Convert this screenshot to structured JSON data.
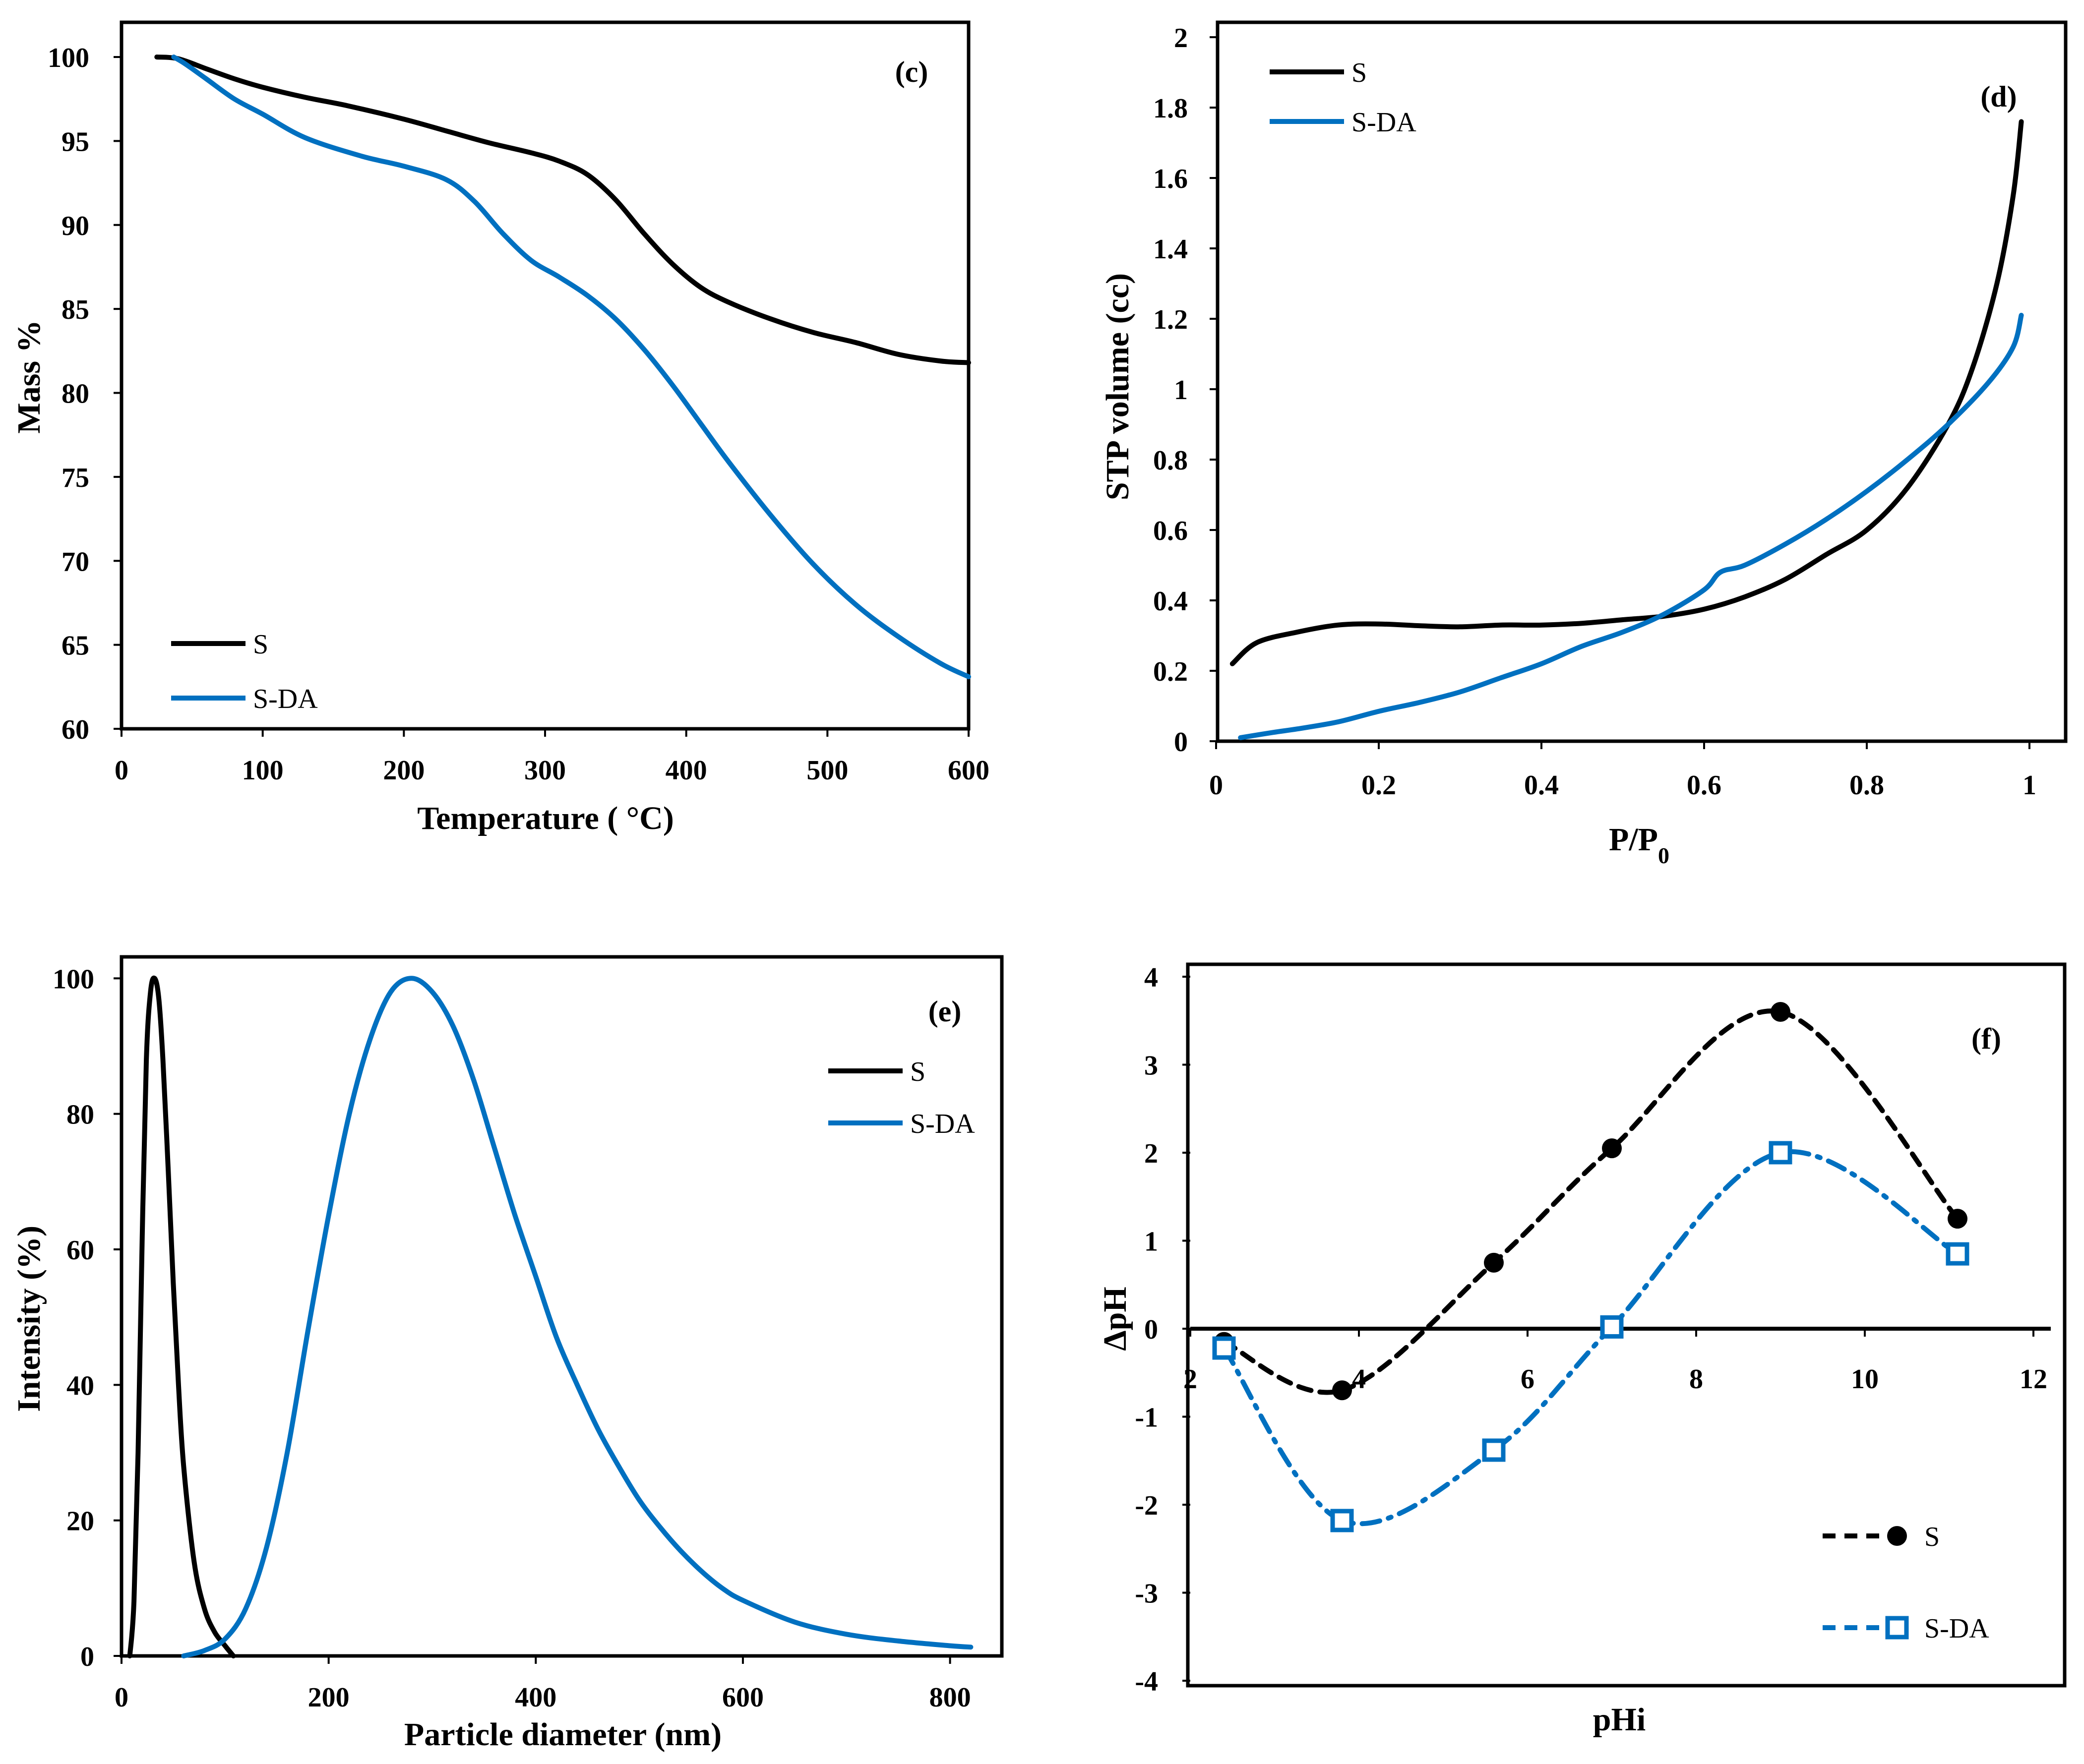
{
  "colors": {
    "S": "#000000",
    "S_DA": "#0070C0"
  },
  "chart_data": [
    {
      "id": "c",
      "type": "line",
      "panel_label": "(c)",
      "xlabel": "Temperature ( °C)",
      "ylabel": "Mass %",
      "xlim": [
        0,
        600
      ],
      "ylim": [
        60,
        100
      ],
      "xticks": [
        0,
        100,
        200,
        300,
        400,
        500,
        600
      ],
      "yticks": [
        60,
        65,
        70,
        75,
        80,
        85,
        90,
        95,
        100
      ],
      "legend": [
        "S",
        "S-DA"
      ],
      "legend_position": "bottom-left",
      "series": [
        {
          "name": "S",
          "x": [
            25,
            40,
            60,
            80,
            100,
            130,
            160,
            200,
            230,
            260,
            290,
            310,
            330,
            350,
            370,
            390,
            410,
            430,
            460,
            490,
            520,
            550,
            580,
            600
          ],
          "y": [
            100,
            99.9,
            99.3,
            98.7,
            98.2,
            97.6,
            97.1,
            96.3,
            95.6,
            94.9,
            94.3,
            93.8,
            93,
            91.5,
            89.5,
            87.7,
            86.3,
            85.4,
            84.4,
            83.6,
            83,
            82.3,
            81.9,
            81.8
          ]
        },
        {
          "name": "S-DA",
          "x": [
            37,
            45,
            60,
            80,
            100,
            130,
            170,
            200,
            230,
            250,
            270,
            290,
            310,
            330,
            350,
            370,
            390,
            410,
            430,
            460,
            490,
            520,
            550,
            580,
            600
          ],
          "y": [
            100,
            99.6,
            98.7,
            97.5,
            96.6,
            95.2,
            94.1,
            93.5,
            92.7,
            91.4,
            89.5,
            87.9,
            86.9,
            85.8,
            84.4,
            82.6,
            80.5,
            78.2,
            75.9,
            72.7,
            69.8,
            67.4,
            65.5,
            63.9,
            63.1
          ]
        }
      ]
    },
    {
      "id": "d",
      "type": "line",
      "panel_label": "(d)",
      "xlabel": "P/P",
      "xlabel_sub": "0",
      "ylabel": "STP volume (cc)",
      "xlim": [
        0,
        1
      ],
      "ylim": [
        0,
        2
      ],
      "xticks": [
        "0",
        "0.2",
        "0.4",
        "0.6",
        "0.8",
        "1"
      ],
      "yticks": [
        "0",
        "0.2",
        "0.4",
        "0.6",
        "0.8",
        "1",
        "1.2",
        "1.4",
        "1.6",
        "1.8",
        "2"
      ],
      "legend": [
        "S",
        "S-DA"
      ],
      "legend_position": "top-left",
      "series": [
        {
          "name": "S",
          "x": [
            0.02,
            0.05,
            0.1,
            0.15,
            0.2,
            0.25,
            0.3,
            0.35,
            0.4,
            0.45,
            0.5,
            0.55,
            0.6,
            0.65,
            0.7,
            0.75,
            0.8,
            0.85,
            0.9,
            0.93,
            0.96,
            0.98,
            0.99
          ],
          "y": [
            0.22,
            0.28,
            0.31,
            0.33,
            0.333,
            0.328,
            0.325,
            0.33,
            0.33,
            0.335,
            0.345,
            0.355,
            0.375,
            0.41,
            0.46,
            0.53,
            0.6,
            0.72,
            0.9,
            1.06,
            1.3,
            1.55,
            1.76
          ]
        },
        {
          "name": "S-DA",
          "x": [
            0.03,
            0.07,
            0.1,
            0.15,
            0.2,
            0.25,
            0.3,
            0.35,
            0.4,
            0.45,
            0.5,
            0.55,
            0.6,
            0.62,
            0.65,
            0.7,
            0.75,
            0.8,
            0.85,
            0.9,
            0.95,
            0.98,
            0.99
          ],
          "y": [
            0.01,
            0.025,
            0.035,
            0.055,
            0.085,
            0.11,
            0.14,
            0.18,
            0.22,
            0.27,
            0.31,
            0.36,
            0.43,
            0.48,
            0.5,
            0.56,
            0.63,
            0.71,
            0.8,
            0.9,
            1.02,
            1.12,
            1.21
          ]
        }
      ]
    },
    {
      "id": "e",
      "type": "line",
      "panel_label": "(e)",
      "xlabel": "Particle diameter (nm)",
      "ylabel": "Intensity (%)",
      "xlim": [
        0,
        850
      ],
      "ylim": [
        0,
        105
      ],
      "xticks": [
        0,
        200,
        400,
        600,
        800
      ],
      "yticks": [
        0,
        20,
        40,
        60,
        80,
        100
      ],
      "legend": [
        "S",
        "S-DA"
      ],
      "legend_position": "top-right",
      "series": [
        {
          "name": "S",
          "x": [
            8,
            12,
            16,
            20,
            24,
            28,
            32,
            36,
            40,
            45,
            50,
            55,
            60,
            70,
            80,
            90,
            100,
            108
          ],
          "y": [
            0,
            8,
            30,
            62,
            88,
            98,
            100,
            97,
            88,
            72,
            55,
            40,
            28,
            14,
            7,
            3.5,
            1.5,
            0
          ]
        },
        {
          "name": "S-DA",
          "x": [
            60,
            80,
            100,
            120,
            140,
            160,
            180,
            200,
            220,
            240,
            260,
            280,
            300,
            320,
            340,
            360,
            380,
            400,
            420,
            440,
            460,
            480,
            500,
            520,
            540,
            560,
            580,
            600,
            650,
            700,
            750,
            800,
            820
          ],
          "y": [
            0,
            0.8,
            2.5,
            7,
            16,
            30,
            48,
            65,
            80,
            91,
            98,
            100,
            98,
            93,
            85,
            75,
            65,
            56,
            47,
            40,
            33.5,
            28,
            23,
            19,
            15.5,
            12.5,
            10,
            8.2,
            5,
            3.2,
            2.2,
            1.5,
            1.3
          ]
        }
      ]
    },
    {
      "id": "f",
      "type": "line",
      "panel_label": "(f)",
      "xlabel": "pHi",
      "ylabel": "ΔpH",
      "xlim": [
        2,
        12
      ],
      "ylim": [
        -4,
        4
      ],
      "xticks": [
        "2",
        "4",
        "6",
        "8",
        "10",
        "12"
      ],
      "yticks": [
        "-4",
        "-3",
        "-2",
        "-1",
        "0",
        "1",
        "2",
        "3",
        "4"
      ],
      "legend": [
        "S",
        "S-DA"
      ],
      "legend_position": "bottom-right",
      "series": [
        {
          "name": "S",
          "marker": "filled-circle",
          "line": "dashed",
          "x": [
            2.4,
            3.8,
            5.6,
            7,
            9,
            11.1
          ],
          "y": [
            -0.15,
            -0.7,
            0.75,
            2.05,
            3.6,
            1.25
          ]
        },
        {
          "name": "S-DA",
          "marker": "open-square",
          "line": "dash-dot",
          "x": [
            2.4,
            3.8,
            5.6,
            7,
            9,
            11.1
          ],
          "y": [
            -0.22,
            -2.18,
            -1.38,
            0.02,
            2.0,
            0.85
          ]
        }
      ]
    }
  ]
}
